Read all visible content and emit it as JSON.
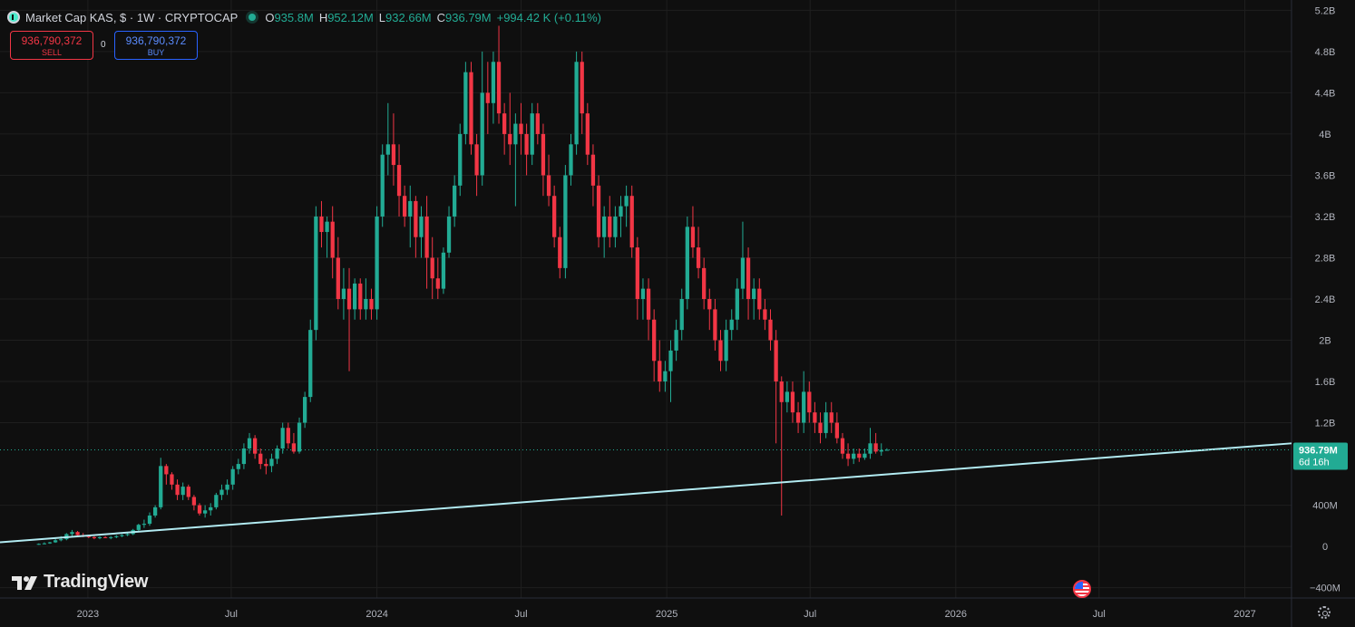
{
  "header": {
    "symbol_title": "Market Cap KAS, $ · 1W · CRYPTOCAP",
    "open_label": "O",
    "open": "935.8M",
    "high_label": "H",
    "high": "952.12M",
    "low_label": "L",
    "low": "932.66M",
    "close_label": "C",
    "close": "936.79M",
    "change": "+994.42 K (+0.11%)",
    "symbol_icon": "kaspa-logo-icon",
    "live_icon": "market-open-dot-icon"
  },
  "trade": {
    "sell_price": "936,790,372",
    "sell_label": "SELL",
    "spread": "0",
    "buy_price": "936,790,372",
    "buy_label": "BUY"
  },
  "branding": {
    "logo_text": "TradingView",
    "logo_icon": "tradingview-logo-icon"
  },
  "colors": {
    "up": "#22ab94",
    "down": "#f23645",
    "trendline": "#b2ebf2",
    "background": "#0f0f0f",
    "grid": "#1f1f1f"
  },
  "chart_data": {
    "type": "candlestick",
    "title": "Market Cap KAS, $ · 1W · CRYPTOCAP",
    "y_unit": "USD",
    "ylim": [
      -500000000,
      5300000000
    ],
    "xlim": [
      "2022-09-12",
      "2027-03-01"
    ],
    "y_ticks": [
      {
        "v": 5200000000,
        "label": "5.2B"
      },
      {
        "v": 4800000000,
        "label": "4.8B"
      },
      {
        "v": 4400000000,
        "label": "4.4B"
      },
      {
        "v": 4000000000,
        "label": "4B"
      },
      {
        "v": 3600000000,
        "label": "3.6B"
      },
      {
        "v": 3200000000,
        "label": "3.2B"
      },
      {
        "v": 2800000000,
        "label": "2.8B"
      },
      {
        "v": 2400000000,
        "label": "2.4B"
      },
      {
        "v": 2000000000,
        "label": "2B"
      },
      {
        "v": 1600000000,
        "label": "1.6B"
      },
      {
        "v": 1200000000,
        "label": "1.2B"
      },
      {
        "v": 400000000,
        "label": "400M"
      },
      {
        "v": 0,
        "label": "0"
      },
      {
        "v": -400000000,
        "label": "−400M"
      }
    ],
    "x_ticks": [
      {
        "date": "2023-01-01",
        "label": "2023"
      },
      {
        "date": "2023-07-01",
        "label": "Jul"
      },
      {
        "date": "2024-01-01",
        "label": "2024"
      },
      {
        "date": "2024-07-01",
        "label": "Jul"
      },
      {
        "date": "2025-01-01",
        "label": "2025"
      },
      {
        "date": "2025-07-01",
        "label": "Jul"
      },
      {
        "date": "2026-01-01",
        "label": "2026"
      },
      {
        "date": "2026-07-01",
        "label": "Jul"
      },
      {
        "date": "2027-01-01",
        "label": "2027"
      }
    ],
    "grid": true,
    "last_price": {
      "value": 936790000,
      "label": "936.79M",
      "countdown": "6d 16h"
    },
    "trendline": {
      "from": {
        "date": "2022-09-12",
        "value": 40000000
      },
      "to": {
        "date": "2027-03-01",
        "value": 1000000000
      }
    },
    "candle_start": "2022-10-31",
    "candle_interval_days": 7,
    "ohlc_unit": "billion USD",
    "ohlc": [
      [
        0.02,
        0.03,
        0.015,
        0.025
      ],
      [
        0.025,
        0.04,
        0.02,
        0.03
      ],
      [
        0.03,
        0.045,
        0.025,
        0.04
      ],
      [
        0.04,
        0.08,
        0.035,
        0.06
      ],
      [
        0.06,
        0.1,
        0.05,
        0.07
      ],
      [
        0.07,
        0.13,
        0.06,
        0.12
      ],
      [
        0.12,
        0.16,
        0.1,
        0.14
      ],
      [
        0.14,
        0.15,
        0.1,
        0.11
      ],
      [
        0.11,
        0.13,
        0.09,
        0.1
      ],
      [
        0.1,
        0.11,
        0.08,
        0.09
      ],
      [
        0.09,
        0.1,
        0.07,
        0.08
      ],
      [
        0.08,
        0.1,
        0.07,
        0.09
      ],
      [
        0.09,
        0.1,
        0.08,
        0.085
      ],
      [
        0.085,
        0.1,
        0.07,
        0.09
      ],
      [
        0.09,
        0.11,
        0.08,
        0.1
      ],
      [
        0.1,
        0.12,
        0.09,
        0.11
      ],
      [
        0.11,
        0.13,
        0.1,
        0.12
      ],
      [
        0.12,
        0.17,
        0.11,
        0.16
      ],
      [
        0.16,
        0.22,
        0.15,
        0.21
      ],
      [
        0.21,
        0.26,
        0.18,
        0.22
      ],
      [
        0.22,
        0.33,
        0.2,
        0.3
      ],
      [
        0.3,
        0.4,
        0.28,
        0.38
      ],
      [
        0.38,
        0.86,
        0.36,
        0.78
      ],
      [
        0.78,
        0.8,
        0.6,
        0.7
      ],
      [
        0.7,
        0.72,
        0.55,
        0.6
      ],
      [
        0.6,
        0.65,
        0.45,
        0.5
      ],
      [
        0.5,
        0.62,
        0.45,
        0.58
      ],
      [
        0.58,
        0.6,
        0.45,
        0.48
      ],
      [
        0.48,
        0.5,
        0.35,
        0.4
      ],
      [
        0.4,
        0.42,
        0.3,
        0.32
      ],
      [
        0.32,
        0.4,
        0.28,
        0.35
      ],
      [
        0.35,
        0.42,
        0.3,
        0.38
      ],
      [
        0.38,
        0.52,
        0.36,
        0.5
      ],
      [
        0.5,
        0.6,
        0.45,
        0.55
      ],
      [
        0.55,
        0.65,
        0.5,
        0.6
      ],
      [
        0.6,
        0.78,
        0.55,
        0.75
      ],
      [
        0.75,
        0.85,
        0.7,
        0.8
      ],
      [
        0.8,
        1.0,
        0.75,
        0.95
      ],
      [
        0.95,
        1.1,
        0.9,
        1.05
      ],
      [
        1.05,
        1.08,
        0.85,
        0.9
      ],
      [
        0.9,
        0.95,
        0.75,
        0.8
      ],
      [
        0.8,
        0.85,
        0.7,
        0.78
      ],
      [
        0.78,
        0.9,
        0.72,
        0.85
      ],
      [
        0.85,
        0.98,
        0.8,
        0.95
      ],
      [
        0.95,
        1.2,
        0.9,
        1.15
      ],
      [
        1.15,
        1.2,
        0.95,
        1.0
      ],
      [
        1.0,
        1.1,
        0.9,
        0.92
      ],
      [
        0.92,
        1.25,
        0.9,
        1.2
      ],
      [
        1.2,
        1.5,
        1.15,
        1.45
      ],
      [
        1.45,
        2.2,
        1.4,
        2.1
      ],
      [
        2.1,
        3.3,
        2.0,
        3.2
      ],
      [
        3.2,
        3.35,
        2.9,
        3.05
      ],
      [
        3.05,
        3.2,
        2.8,
        3.15
      ],
      [
        3.15,
        3.3,
        2.6,
        2.8
      ],
      [
        2.8,
        3.0,
        2.3,
        2.4
      ],
      [
        2.4,
        2.7,
        2.2,
        2.5
      ],
      [
        2.5,
        2.7,
        1.7,
        2.3
      ],
      [
        2.3,
        2.6,
        2.2,
        2.55
      ],
      [
        2.55,
        2.6,
        2.2,
        2.3
      ],
      [
        2.3,
        2.6,
        2.2,
        2.4
      ],
      [
        2.4,
        2.5,
        2.2,
        2.3
      ],
      [
        2.3,
        3.3,
        2.2,
        3.2
      ],
      [
        3.2,
        3.9,
        3.1,
        3.8
      ],
      [
        3.8,
        4.3,
        3.6,
        3.9
      ],
      [
        3.9,
        4.2,
        3.5,
        3.7
      ],
      [
        3.7,
        3.9,
        3.2,
        3.4
      ],
      [
        3.4,
        3.5,
        3.1,
        3.2
      ],
      [
        3.2,
        3.5,
        2.9,
        3.35
      ],
      [
        3.35,
        3.4,
        2.8,
        3.0
      ],
      [
        3.0,
        3.3,
        2.8,
        3.2
      ],
      [
        3.2,
        3.4,
        2.5,
        2.8
      ],
      [
        2.8,
        3.0,
        2.4,
        2.6
      ],
      [
        2.6,
        2.8,
        2.4,
        2.5
      ],
      [
        2.5,
        2.9,
        2.45,
        2.85
      ],
      [
        2.85,
        3.3,
        2.8,
        3.2
      ],
      [
        3.2,
        3.6,
        3.1,
        3.5
      ],
      [
        3.5,
        4.1,
        3.4,
        4.0
      ],
      [
        4.0,
        4.7,
        3.9,
        4.6
      ],
      [
        4.6,
        4.7,
        3.8,
        3.9
      ],
      [
        3.9,
        4.0,
        3.4,
        3.6
      ],
      [
        3.6,
        4.8,
        3.5,
        4.4
      ],
      [
        4.4,
        4.7,
        4.0,
        4.3
      ],
      [
        4.3,
        4.8,
        4.1,
        4.7
      ],
      [
        4.7,
        5.05,
        4.1,
        4.2
      ],
      [
        4.2,
        4.3,
        3.8,
        4.0
      ],
      [
        4.0,
        4.4,
        3.7,
        3.9
      ],
      [
        3.9,
        4.2,
        3.3,
        4.1
      ],
      [
        4.1,
        4.3,
        3.8,
        4.0
      ],
      [
        4.0,
        4.1,
        3.6,
        3.8
      ],
      [
        3.8,
        4.3,
        3.7,
        4.2
      ],
      [
        4.2,
        4.3,
        3.9,
        4.0
      ],
      [
        4.0,
        4.1,
        3.4,
        3.6
      ],
      [
        3.6,
        3.8,
        3.3,
        3.4
      ],
      [
        3.4,
        3.5,
        2.9,
        3.0
      ],
      [
        3.0,
        3.1,
        2.6,
        2.7
      ],
      [
        2.7,
        3.7,
        2.6,
        3.6
      ],
      [
        3.6,
        4.0,
        3.5,
        3.9
      ],
      [
        3.9,
        4.8,
        3.8,
        4.7
      ],
      [
        4.7,
        4.8,
        4.0,
        4.2
      ],
      [
        4.2,
        4.3,
        3.7,
        3.8
      ],
      [
        3.8,
        3.9,
        3.3,
        3.5
      ],
      [
        3.5,
        3.6,
        2.9,
        3.0
      ],
      [
        3.0,
        3.3,
        2.8,
        3.2
      ],
      [
        3.2,
        3.4,
        2.9,
        3.0
      ],
      [
        3.0,
        3.3,
        2.9,
        3.2
      ],
      [
        3.2,
        3.4,
        3.0,
        3.3
      ],
      [
        3.3,
        3.5,
        3.1,
        3.4
      ],
      [
        3.4,
        3.5,
        2.8,
        2.9
      ],
      [
        2.9,
        3.0,
        2.2,
        2.4
      ],
      [
        2.4,
        2.6,
        2.2,
        2.5
      ],
      [
        2.5,
        2.6,
        2.0,
        2.2
      ],
      [
        2.2,
        2.3,
        1.6,
        1.8
      ],
      [
        1.8,
        2.0,
        1.5,
        1.6
      ],
      [
        1.6,
        1.8,
        1.5,
        1.7
      ],
      [
        1.7,
        2.0,
        1.4,
        1.9
      ],
      [
        1.9,
        2.2,
        1.8,
        2.1
      ],
      [
        2.1,
        2.5,
        2.0,
        2.4
      ],
      [
        2.4,
        3.2,
        2.3,
        3.1
      ],
      [
        3.1,
        3.3,
        2.8,
        2.9
      ],
      [
        2.9,
        3.1,
        2.6,
        2.7
      ],
      [
        2.7,
        2.8,
        2.3,
        2.4
      ],
      [
        2.4,
        2.5,
        2.1,
        2.3
      ],
      [
        2.3,
        2.4,
        1.9,
        2.0
      ],
      [
        2.0,
        2.1,
        1.7,
        1.8
      ],
      [
        1.8,
        2.2,
        1.7,
        2.1
      ],
      [
        2.1,
        2.3,
        2.0,
        2.2
      ],
      [
        2.2,
        2.6,
        2.1,
        2.5
      ],
      [
        2.5,
        3.15,
        2.4,
        2.8
      ],
      [
        2.8,
        2.9,
        2.2,
        2.4
      ],
      [
        2.4,
        2.6,
        2.2,
        2.5
      ],
      [
        2.5,
        2.6,
        2.2,
        2.3
      ],
      [
        2.3,
        2.4,
        2.1,
        2.2
      ],
      [
        2.2,
        2.3,
        1.9,
        2.0
      ],
      [
        2.0,
        2.1,
        1.0,
        1.6
      ],
      [
        1.6,
        1.65,
        0.3,
        1.4
      ],
      [
        1.4,
        1.6,
        1.3,
        1.5
      ],
      [
        1.5,
        1.6,
        1.2,
        1.3
      ],
      [
        1.3,
        1.4,
        1.1,
        1.2
      ],
      [
        1.2,
        1.7,
        1.1,
        1.5
      ],
      [
        1.5,
        1.6,
        1.2,
        1.3
      ],
      [
        1.3,
        1.4,
        1.1,
        1.2
      ],
      [
        1.2,
        1.3,
        1.0,
        1.1
      ],
      [
        1.1,
        1.4,
        1.05,
        1.3
      ],
      [
        1.3,
        1.4,
        1.1,
        1.2
      ],
      [
        1.2,
        1.3,
        1.0,
        1.05
      ],
      [
        1.05,
        1.1,
        0.85,
        0.9
      ],
      [
        0.9,
        1.0,
        0.78,
        0.85
      ],
      [
        0.85,
        0.95,
        0.8,
        0.9
      ],
      [
        0.9,
        0.95,
        0.82,
        0.86
      ],
      [
        0.86,
        0.95,
        0.84,
        0.9
      ],
      [
        0.9,
        1.15,
        0.85,
        1.0
      ],
      [
        1.0,
        1.1,
        0.9,
        0.92
      ],
      [
        0.92,
        1.0,
        0.88,
        0.935
      ],
      [
        0.935,
        0.952,
        0.933,
        0.937
      ]
    ]
  }
}
